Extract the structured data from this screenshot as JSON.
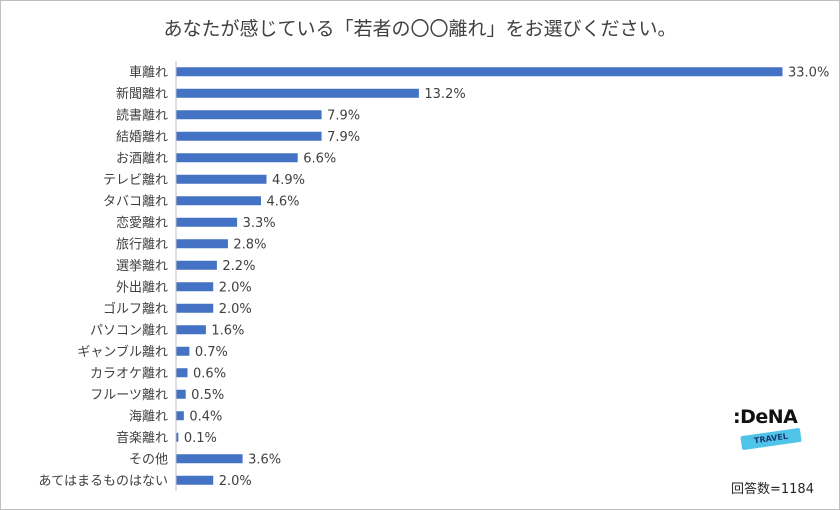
{
  "title": "あなたが感じている「若者の〇〇離れ」をお選びください。",
  "sample_note": "回答数=1184",
  "logo": {
    "brand": ":DeNA",
    "sub": "TRAVEL"
  },
  "colors": {
    "bar": "#4472c4",
    "text": "#404040",
    "logo_band": "#4fc3e8"
  },
  "chart_data": {
    "type": "bar",
    "orientation": "horizontal",
    "title": "あなたが感じている「若者の〇〇離れ」をお選びください。",
    "categories": [
      "車離れ",
      "新聞離れ",
      "読書離れ",
      "結婚離れ",
      "お酒離れ",
      "テレビ離れ",
      "タバコ離れ",
      "恋愛離れ",
      "旅行離れ",
      "選挙離れ",
      "外出離れ",
      "ゴルフ離れ",
      "パソコン離れ",
      "ギャンブル離れ",
      "カラオケ離れ",
      "フルーツ離れ",
      "海離れ",
      "音楽離れ",
      "その他",
      "あてはまるものはない"
    ],
    "values": [
      33.0,
      13.2,
      7.9,
      7.9,
      6.6,
      4.9,
      4.6,
      3.3,
      2.8,
      2.2,
      2.0,
      2.0,
      1.6,
      0.7,
      0.6,
      0.5,
      0.4,
      0.1,
      3.6,
      2.0
    ],
    "labels": [
      "33.0%",
      "13.2%",
      "7.9%",
      "7.9%",
      "6.6%",
      "4.9%",
      "4.6%",
      "3.3%",
      "2.8%",
      "2.2%",
      "2.0%",
      "2.0%",
      "1.6%",
      "0.7%",
      "0.6%",
      "0.5%",
      "0.4%",
      "0.1%",
      "3.6%",
      "2.0%"
    ],
    "unit": "%",
    "xlim": [
      0,
      33.0
    ],
    "grid": false,
    "legend": "none"
  }
}
